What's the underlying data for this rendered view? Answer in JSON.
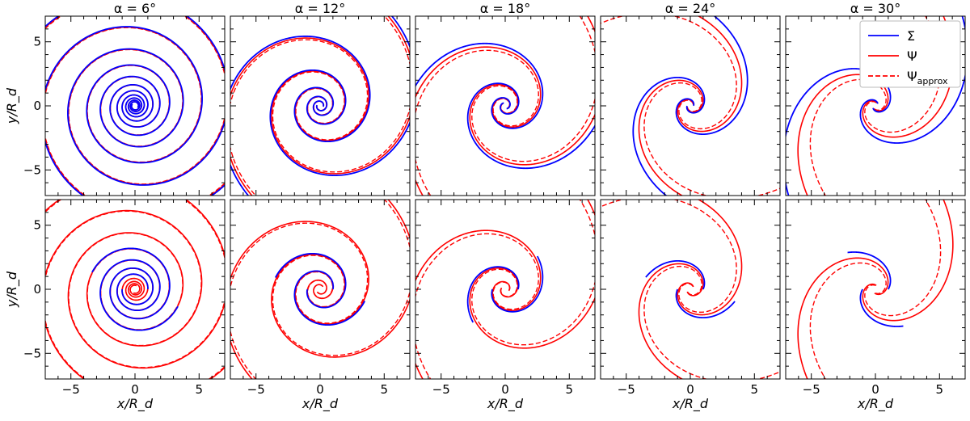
{
  "chart_data": {
    "type": "line",
    "layout": "2x5 grid of spiral panels",
    "xlabel": "x/R_d",
    "ylabel": "y/R_d",
    "xlim": [
      -7,
      7
    ],
    "ylim": [
      -7,
      7
    ],
    "xticks": [
      -5,
      0,
      5
    ],
    "yticks": [
      -5,
      0,
      5
    ],
    "tick_labels": [
      "−5",
      "0",
      "5"
    ],
    "grid": false,
    "legend_location": "top-right of last top panel",
    "legend": [
      {
        "key": "sigma",
        "label": "Σ",
        "color": "#0000ff",
        "style": "solid"
      },
      {
        "key": "psi",
        "label": "Ψ",
        "color": "#ff0000",
        "style": "solid"
      },
      {
        "key": "psi_approx",
        "label": "Ψ",
        "sub": "approx",
        "color": "#ff0000",
        "style": "dashed"
      }
    ],
    "columns": [
      {
        "alpha_deg": 6,
        "title": "α = 6°"
      },
      {
        "alpha_deg": 12,
        "title": "α = 12°"
      },
      {
        "alpha_deg": 18,
        "title": "α = 18°"
      },
      {
        "alpha_deg": 24,
        "title": "α = 24°"
      },
      {
        "alpha_deg": 30,
        "title": "α = 30°"
      }
    ],
    "rows": [
      {
        "description": "full spiral arms",
        "sigma_r_range": [
          0.25,
          10
        ],
        "psi_r_range": [
          0.25,
          10
        ]
      },
      {
        "description": "truncated spiral arms",
        "sigma_r_range": [
          1.0,
          3.6
        ],
        "psi_r_range": [
          0.3,
          10
        ]
      }
    ]
  }
}
